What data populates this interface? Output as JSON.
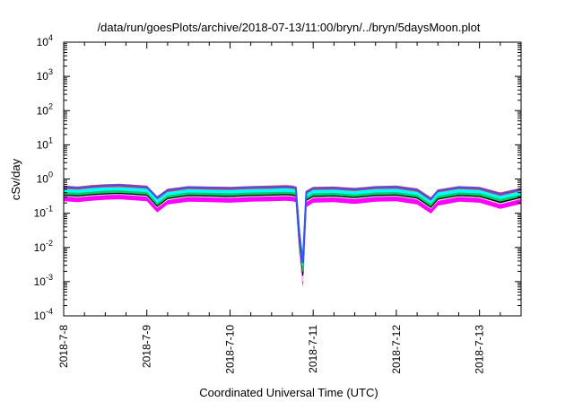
{
  "chart_data": {
    "type": "area",
    "title": "/data/run/goesPlots/archive/2018-07-13/11:00/bryn/../bryn/5daysMoon.plot",
    "xlabel": "Coordinated Universal Time (UTC)",
    "ylabel": "cSv/day",
    "xlim": [
      "2018-07-08",
      "2018-07-13T12:00"
    ],
    "x_ticks": [
      "2018-7-8",
      "2018-7-9",
      "2018-7-10",
      "2018-7-11",
      "2018-7-12",
      "2018-7-13"
    ],
    "y_scale": "log",
    "ylim": [
      0.0001,
      10000
    ],
    "y_ticks": [
      {
        "base": "10",
        "exp": "-4"
      },
      {
        "base": "10",
        "exp": "-3"
      },
      {
        "base": "10",
        "exp": "-2"
      },
      {
        "base": "10",
        "exp": "-1"
      },
      {
        "base": "10",
        "exp": "0"
      },
      {
        "base": "10",
        "exp": "1"
      },
      {
        "base": "10",
        "exp": "2"
      },
      {
        "base": "10",
        "exp": "3"
      },
      {
        "base": "10",
        "exp": "4"
      }
    ],
    "grid": false,
    "legend": "none",
    "series_colors": [
      "#ff00ff",
      "#e0e0e0",
      "#000000",
      "#00cc66",
      "#00ffff",
      "#ff3333",
      "#3355ff"
    ],
    "x": [
      "2018-07-08T00:00",
      "2018-07-08T04:00",
      "2018-07-08T08:00",
      "2018-07-08T12:00",
      "2018-07-08T16:00",
      "2018-07-08T20:00",
      "2018-07-09T00:00",
      "2018-07-09T03:00",
      "2018-07-09T06:00",
      "2018-07-09T12:00",
      "2018-07-09T18:00",
      "2018-07-10T00:00",
      "2018-07-10T06:00",
      "2018-07-10T12:00",
      "2018-07-10T16:00",
      "2018-07-10T18:00",
      "2018-07-10T19:00",
      "2018-07-10T20:00",
      "2018-07-10T21:00",
      "2018-07-10T22:00",
      "2018-07-11T00:00",
      "2018-07-11T06:00",
      "2018-07-11T12:00",
      "2018-07-11T18:00",
      "2018-07-12T00:00",
      "2018-07-12T06:00",
      "2018-07-12T10:00",
      "2018-07-12T12:00",
      "2018-07-12T18:00",
      "2018-07-13T00:00",
      "2018-07-13T06:00",
      "2018-07-13T12:00"
    ],
    "series": [
      {
        "values": [
          0.3,
          0.28,
          0.31,
          0.33,
          0.34,
          0.32,
          0.3,
          0.14,
          0.24,
          0.29,
          0.28,
          0.27,
          0.29,
          0.3,
          0.31,
          0.3,
          0.28,
          0.01,
          0.0009,
          0.2,
          0.27,
          0.28,
          0.25,
          0.29,
          0.3,
          0.24,
          0.13,
          0.22,
          0.29,
          0.27,
          0.18,
          0.25
        ]
      },
      {
        "values": [
          0.32,
          0.3,
          0.33,
          0.35,
          0.36,
          0.34,
          0.32,
          0.15,
          0.25,
          0.31,
          0.3,
          0.29,
          0.31,
          0.32,
          0.33,
          0.32,
          0.3,
          0.012,
          0.001,
          0.22,
          0.29,
          0.3,
          0.27,
          0.31,
          0.32,
          0.26,
          0.14,
          0.24,
          0.31,
          0.29,
          0.19,
          0.27
        ]
      },
      {
        "values": [
          0.34,
          0.32,
          0.35,
          0.37,
          0.38,
          0.36,
          0.34,
          0.16,
          0.27,
          0.33,
          0.32,
          0.31,
          0.33,
          0.34,
          0.35,
          0.34,
          0.32,
          0.015,
          0.0015,
          0.24,
          0.31,
          0.32,
          0.29,
          0.33,
          0.34,
          0.28,
          0.15,
          0.26,
          0.33,
          0.31,
          0.21,
          0.29
        ]
      },
      {
        "values": [
          0.4,
          0.38,
          0.41,
          0.44,
          0.45,
          0.42,
          0.4,
          0.19,
          0.32,
          0.39,
          0.38,
          0.37,
          0.39,
          0.4,
          0.41,
          0.4,
          0.38,
          0.02,
          0.002,
          0.28,
          0.37,
          0.38,
          0.34,
          0.39,
          0.4,
          0.33,
          0.18,
          0.31,
          0.39,
          0.37,
          0.25,
          0.34
        ]
      },
      {
        "values": [
          0.5,
          0.47,
          0.52,
          0.55,
          0.56,
          0.53,
          0.5,
          0.24,
          0.4,
          0.49,
          0.47,
          0.46,
          0.49,
          0.5,
          0.52,
          0.5,
          0.47,
          0.025,
          0.003,
          0.35,
          0.46,
          0.47,
          0.43,
          0.49,
          0.5,
          0.41,
          0.22,
          0.39,
          0.49,
          0.46,
          0.31,
          0.43
        ]
      },
      {
        "values": [
          0.62,
          0.58,
          0.64,
          0.68,
          0.7,
          0.66,
          0.62,
          0.3,
          0.5,
          0.6,
          0.58,
          0.57,
          0.6,
          0.62,
          0.64,
          0.62,
          0.58,
          0.03,
          0.004,
          0.44,
          0.57,
          0.58,
          0.53,
          0.6,
          0.62,
          0.51,
          0.28,
          0.48,
          0.6,
          0.57,
          0.39,
          0.53
        ]
      },
      {
        "values": [
          0.58,
          0.55,
          0.6,
          0.64,
          0.66,
          0.62,
          0.58,
          0.28,
          0.47,
          0.57,
          0.55,
          0.54,
          0.57,
          0.58,
          0.6,
          0.58,
          0.55,
          0.028,
          0.0035,
          0.41,
          0.54,
          0.55,
          0.5,
          0.57,
          0.58,
          0.48,
          0.26,
          0.45,
          0.57,
          0.54,
          0.36,
          0.5
        ]
      }
    ]
  }
}
